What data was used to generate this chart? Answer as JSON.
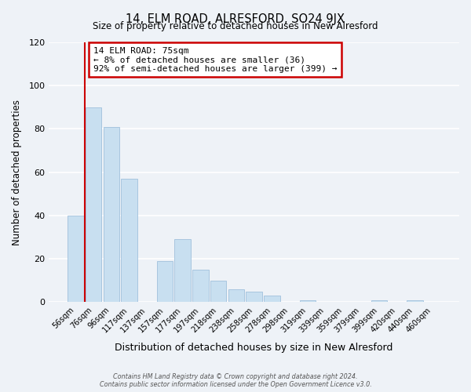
{
  "title": "14, ELM ROAD, ALRESFORD, SO24 9JX",
  "subtitle": "Size of property relative to detached houses in New Alresford",
  "xlabel": "Distribution of detached houses by size in New Alresford",
  "ylabel": "Number of detached properties",
  "bar_labels": [
    "56sqm",
    "76sqm",
    "96sqm",
    "117sqm",
    "137sqm",
    "157sqm",
    "177sqm",
    "197sqm",
    "218sqm",
    "238sqm",
    "258sqm",
    "278sqm",
    "298sqm",
    "319sqm",
    "339sqm",
    "359sqm",
    "379sqm",
    "399sqm",
    "420sqm",
    "440sqm",
    "460sqm"
  ],
  "bar_values": [
    40,
    90,
    81,
    57,
    0,
    19,
    29,
    15,
    10,
    6,
    5,
    3,
    0,
    1,
    0,
    0,
    0,
    1,
    0,
    1,
    0
  ],
  "bar_color": "#c8dff0",
  "bar_edge_color": "#a0c0dc",
  "highlight_edge_color": "#cc0000",
  "annotation_title": "14 ELM ROAD: 75sqm",
  "annotation_line1": "← 8% of detached houses are smaller (36)",
  "annotation_line2": "92% of semi-detached houses are larger (399) →",
  "annotation_box_color": "#ffffff",
  "annotation_box_edge_color": "#cc0000",
  "footer1": "Contains HM Land Registry data © Crown copyright and database right 2024.",
  "footer2": "Contains public sector information licensed under the Open Government Licence v3.0.",
  "ylim": [
    0,
    120
  ],
  "bg_color": "#eef2f7",
  "grid_color": "#ffffff"
}
